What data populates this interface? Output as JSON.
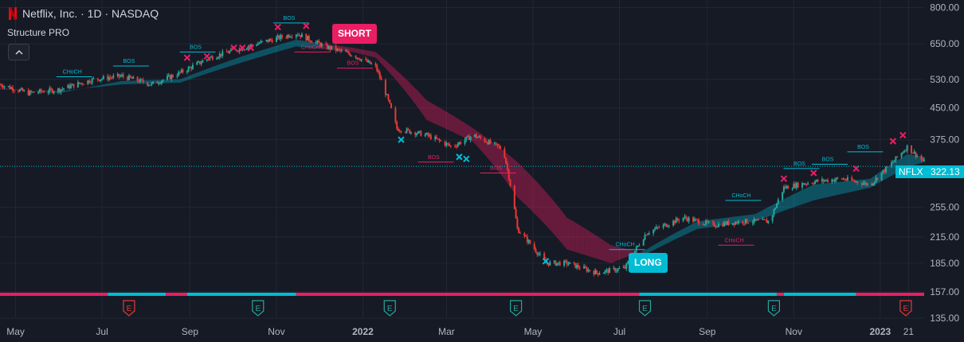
{
  "header": {
    "title": "Netflix, Inc. · 1D · NASDAQ",
    "indicator": "Structure PRO",
    "collapse_icon": "chevron-up-icon"
  },
  "signals": {
    "short": "SHORT",
    "long": "LONG"
  },
  "last_price": {
    "ticker": "NFLX",
    "price": "322.13"
  },
  "colors": {
    "bull": "#00bcd4",
    "bear": "#e91e63",
    "earn_up": "#26a69a",
    "earn_down": "#e53935",
    "background": "#161a25"
  },
  "chart_data": {
    "type": "candlestick",
    "symbol": "NFLX",
    "scale": "log",
    "ylim": [
      135,
      835
    ],
    "y_ticks": [
      800,
      650,
      530,
      450,
      375,
      255,
      215,
      185,
      157,
      135
    ],
    "y_tick_labels": [
      "800.00",
      "650.00",
      "530.00",
      "450.00",
      "375.00",
      "255.00",
      "215.00",
      "185.00",
      "157.00",
      "135.00"
    ],
    "x_ticks": [
      {
        "label": "May",
        "date": "2021-05-01",
        "bold": false
      },
      {
        "label": "Jul",
        "date": "2021-07-01",
        "bold": false
      },
      {
        "label": "Sep",
        "date": "2021-09-01",
        "bold": false
      },
      {
        "label": "Nov",
        "date": "2021-11-01",
        "bold": false
      },
      {
        "label": "2022",
        "date": "2022-01-01",
        "bold": true
      },
      {
        "label": "Mar",
        "date": "2022-03-01",
        "bold": false
      },
      {
        "label": "May",
        "date": "2022-05-01",
        "bold": false
      },
      {
        "label": "Jul",
        "date": "2022-07-01",
        "bold": false
      },
      {
        "label": "Sep",
        "date": "2022-09-01",
        "bold": false
      },
      {
        "label": "Nov",
        "date": "2022-11-01",
        "bold": false
      },
      {
        "label": "2023",
        "date": "2023-01-01",
        "bold": true
      },
      {
        "label": "21",
        "date": "2023-01-21",
        "bold": false
      }
    ],
    "xlim": [
      "2021-04-20",
      "2023-02-01"
    ],
    "price_path": [
      [
        "2021-04-20",
        515
      ],
      [
        "2021-05-10",
        490
      ],
      [
        "2021-06-01",
        500
      ],
      [
        "2021-06-25",
        530
      ],
      [
        "2021-07-15",
        540
      ],
      [
        "2021-08-05",
        515
      ],
      [
        "2021-08-25",
        550
      ],
      [
        "2021-09-15",
        600
      ],
      [
        "2021-10-05",
        630
      ],
      [
        "2021-10-25",
        660
      ],
      [
        "2021-11-15",
        690
      ],
      [
        "2021-12-05",
        640
      ],
      [
        "2021-12-25",
        610
      ],
      [
        "2022-01-10",
        570
      ],
      [
        "2022-01-25",
        400
      ],
      [
        "2022-02-15",
        385
      ],
      [
        "2022-03-05",
        360
      ],
      [
        "2022-03-20",
        385
      ],
      [
        "2022-04-10",
        355
      ],
      [
        "2022-04-20",
        225
      ],
      [
        "2022-05-10",
        185
      ],
      [
        "2022-05-25",
        185
      ],
      [
        "2022-06-15",
        175
      ],
      [
        "2022-07-05",
        180
      ],
      [
        "2022-07-20",
        220
      ],
      [
        "2022-08-15",
        240
      ],
      [
        "2022-09-05",
        230
      ],
      [
        "2022-09-25",
        235
      ],
      [
        "2022-10-15",
        235
      ],
      [
        "2022-10-25",
        285
      ],
      [
        "2022-11-15",
        295
      ],
      [
        "2022-12-05",
        300
      ],
      [
        "2022-12-25",
        290
      ],
      [
        "2023-01-10",
        330
      ],
      [
        "2023-01-20",
        360
      ],
      [
        "2023-02-01",
        330
      ]
    ],
    "cloud": [
      [
        "2021-04-20",
        505,
        500
      ],
      [
        "2021-06-01",
        490,
        495
      ],
      [
        "2021-07-15",
        525,
        515
      ],
      [
        "2021-08-25",
        530,
        520
      ],
      [
        "2021-10-05",
        600,
        580
      ],
      [
        "2021-11-15",
        665,
        640
      ],
      [
        "2021-12-25",
        635,
        620
      ],
      [
        "2022-01-10",
        620,
        600
      ],
      [
        "2022-02-15",
        470,
        420
      ],
      [
        "2022-03-20",
        400,
        370
      ],
      [
        "2022-04-20",
        330,
        270
      ],
      [
        "2022-05-25",
        240,
        200
      ],
      [
        "2022-06-25",
        205,
        185
      ],
      [
        "2022-07-20",
        195,
        200
      ],
      [
        "2022-08-25",
        225,
        235
      ],
      [
        "2022-10-05",
        235,
        245
      ],
      [
        "2022-11-15",
        265,
        290
      ],
      [
        "2022-12-25",
        285,
        300
      ],
      [
        "2023-01-20",
        320,
        345
      ],
      [
        "2023-02-01",
        330,
        340
      ]
    ],
    "structure_labels": [
      {
        "text": "CHoCH",
        "date": "2021-06-10",
        "price": 538,
        "dir": "bull"
      },
      {
        "text": "BOS",
        "date": "2021-07-20",
        "price": 572,
        "dir": "bull"
      },
      {
        "text": "BOS",
        "date": "2021-09-05",
        "price": 620,
        "dir": "bull"
      },
      {
        "text": "BOS",
        "date": "2021-11-10",
        "price": 732,
        "dir": "bull"
      },
      {
        "text": "CHoCH",
        "date": "2021-11-25",
        "price": 620,
        "dir": "bear"
      },
      {
        "text": "BOS",
        "date": "2021-12-25",
        "price": 565,
        "dir": "bear"
      },
      {
        "text": "BOS",
        "date": "2022-02-20",
        "price": 330,
        "dir": "bear"
      },
      {
        "text": "BOS",
        "date": "2022-04-05",
        "price": 310,
        "dir": "bear"
      },
      {
        "text": "CHoCH",
        "date": "2022-07-05",
        "price": 200,
        "dir": "bull"
      },
      {
        "text": "CHoCH",
        "date": "2022-09-25",
        "price": 265,
        "dir": "bull"
      },
      {
        "text": "CHoCH",
        "date": "2022-09-20",
        "price": 205,
        "dir": "bear"
      },
      {
        "text": "BOS",
        "date": "2022-11-05",
        "price": 318,
        "dir": "bull"
      },
      {
        "text": "BOS",
        "date": "2022-11-25",
        "price": 326,
        "dir": "bull"
      },
      {
        "text": "BOS",
        "date": "2022-12-20",
        "price": 350,
        "dir": "bull"
      }
    ],
    "x_markers": [
      {
        "date": "2021-08-30",
        "price": 600,
        "dir": "bear"
      },
      {
        "date": "2021-09-13",
        "price": 605,
        "dir": "bear"
      },
      {
        "date": "2021-10-02",
        "price": 635,
        "dir": "bear"
      },
      {
        "date": "2021-10-08",
        "price": 635,
        "dir": "bear"
      },
      {
        "date": "2021-10-14",
        "price": 635,
        "dir": "bear"
      },
      {
        "date": "2021-11-02",
        "price": 715,
        "dir": "bear"
      },
      {
        "date": "2021-11-22",
        "price": 720,
        "dir": "bear"
      },
      {
        "date": "2022-01-28",
        "price": 375,
        "dir": "bull"
      },
      {
        "date": "2022-03-10",
        "price": 340,
        "dir": "bull"
      },
      {
        "date": "2022-03-15",
        "price": 336,
        "dir": "bull"
      },
      {
        "date": "2022-05-10",
        "price": 187,
        "dir": "bull"
      },
      {
        "date": "2022-10-25",
        "price": 300,
        "dir": "bear"
      },
      {
        "date": "2022-11-15",
        "price": 310,
        "dir": "bear"
      },
      {
        "date": "2022-12-15",
        "price": 318,
        "dir": "bear"
      },
      {
        "date": "2023-01-10",
        "price": 372,
        "dir": "bear"
      },
      {
        "date": "2023-01-17",
        "price": 385,
        "dir": "bear"
      }
    ],
    "trend_strip": [
      [
        "2021-04-20",
        "2021-07-05",
        "bear"
      ],
      [
        "2021-07-05",
        "2021-08-15",
        "bull"
      ],
      [
        "2021-08-15",
        "2021-08-30",
        "bear"
      ],
      [
        "2021-08-30",
        "2021-11-15",
        "bull"
      ],
      [
        "2021-11-15",
        "2022-07-15",
        "bear"
      ],
      [
        "2022-07-15",
        "2022-10-20",
        "bull"
      ],
      [
        "2022-10-20",
        "2022-10-25",
        "bear"
      ],
      [
        "2022-10-25",
        "2022-12-15",
        "bull"
      ],
      [
        "2022-12-15",
        "2023-02-01",
        "bear"
      ]
    ],
    "earnings": [
      {
        "date": "2021-07-20",
        "result": "miss"
      },
      {
        "date": "2021-10-19",
        "result": "beat"
      },
      {
        "date": "2022-01-20",
        "result": "beat"
      },
      {
        "date": "2022-04-19",
        "result": "beat"
      },
      {
        "date": "2022-07-19",
        "result": "beat"
      },
      {
        "date": "2022-10-18",
        "result": "beat"
      },
      {
        "date": "2023-01-19",
        "result": "miss"
      }
    ],
    "earnings_icon_text": "E",
    "last_price_value": 322.13
  }
}
